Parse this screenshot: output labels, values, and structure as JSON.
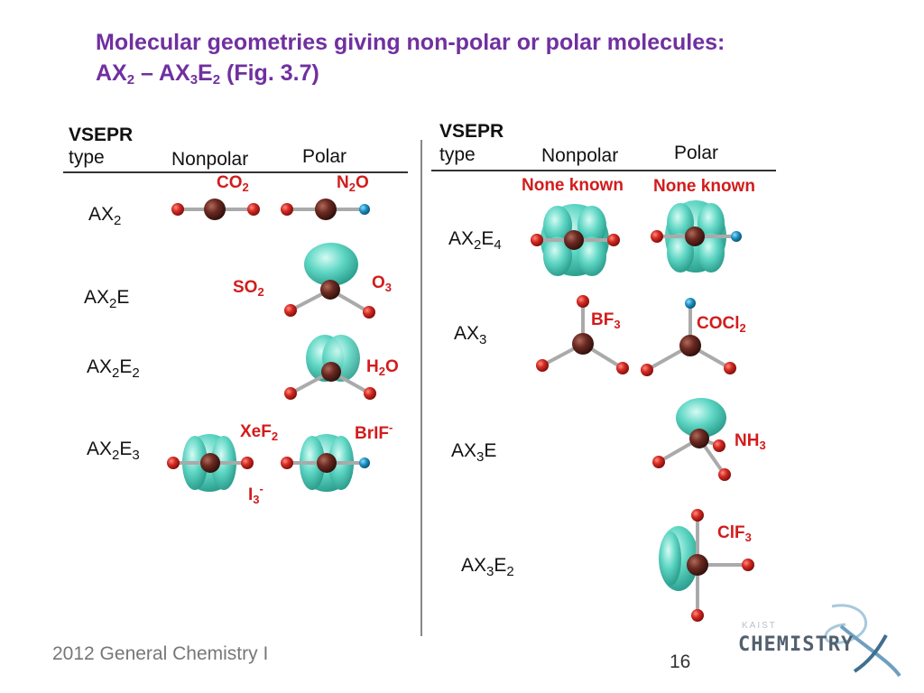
{
  "title": {
    "line1": "Molecular geometries giving non-polar or polar molecules:",
    "line2_parts": [
      "AX",
      "2",
      " – AX",
      "3",
      "E",
      "2",
      " (Fig. 3.7)"
    ]
  },
  "left_table": {
    "header_vsepr": "VSEPR",
    "header_type": "type",
    "col_nonpolar": "Nonpolar",
    "col_polar": "Polar",
    "rows": [
      {
        "label": "AX",
        "sub1": "2",
        "e": "",
        "sub2": ""
      },
      {
        "label": "AX",
        "sub1": "2",
        "e": "E",
        "sub2": ""
      },
      {
        "label": "AX",
        "sub1": "2",
        "e": "E",
        "sub2": "2"
      },
      {
        "label": "AX",
        "sub1": "2",
        "e": "E",
        "sub2": "3"
      }
    ],
    "molecules": {
      "co2": {
        "t": "CO",
        "s": "2"
      },
      "n2o": {
        "t": "N",
        "s": "2",
        "t2": "O"
      },
      "so2": {
        "t": "SO",
        "s": "2"
      },
      "o3": {
        "t": "O",
        "s": "3"
      },
      "h2o": {
        "t": "H",
        "s": "2",
        "t2": "O"
      },
      "xef2": {
        "t": "XeF",
        "s": "2"
      },
      "i3": {
        "t": "I",
        "s": "3",
        "sup": "-"
      },
      "brif": {
        "t": "BrIF",
        "sup": "-"
      }
    }
  },
  "right_table": {
    "header_vsepr": "VSEPR",
    "header_type": "type",
    "col_nonpolar": "Nonpolar",
    "col_polar": "Polar",
    "none_known_1": "None known",
    "none_known_2": "None known",
    "rows": [
      {
        "label": "AX",
        "sub1": "2",
        "e": "E",
        "sub2": "4"
      },
      {
        "label": "AX",
        "sub1": "3",
        "e": "",
        "sub2": ""
      },
      {
        "label": "AX",
        "sub1": "3",
        "e": "E",
        "sub2": ""
      },
      {
        "label": "AX",
        "sub1": "3",
        "e": "E",
        "sub2": "2"
      }
    ],
    "molecules": {
      "bf3": {
        "t": "BF",
        "s": "3"
      },
      "cocl2": {
        "t": "COCl",
        "s": "2"
      },
      "nh3": {
        "t": "NH",
        "s": "3"
      },
      "clf3": {
        "t": "ClF",
        "s": "3"
      }
    }
  },
  "colors": {
    "title": "#7030a0",
    "label_red": "#d21c1c",
    "atom_red": "#c0201c",
    "atom_central": "#6b2a22",
    "atom_blue": "#1a8fc0",
    "lone_pair": "#4fcfbd"
  },
  "footer": {
    "course": "2012 General Chemistry I",
    "page": "16",
    "logo_text": "CHEMISTRY",
    "logo_sub": "KAIST"
  }
}
